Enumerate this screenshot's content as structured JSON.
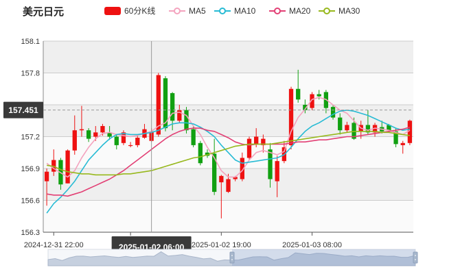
{
  "page_title": "美元日元",
  "legend": [
    {
      "label": "60分K线",
      "color": "#ee1111",
      "kind": "bar"
    },
    {
      "label": "MA5",
      "color": "#f4a3be",
      "kind": "line"
    },
    {
      "label": "MA10",
      "color": "#27bbd4",
      "kind": "line"
    },
    {
      "label": "MA20",
      "color": "#e23f74",
      "kind": "line"
    },
    {
      "label": "MA30",
      "color": "#97b81c",
      "kind": "line"
    }
  ],
  "crosshair": {
    "y_value": "157.451",
    "x_label": "2025-01-02 06:00"
  },
  "colors": {
    "up": "#ee1111",
    "down": "#11a011",
    "band": "#efefef",
    "grid": "#cccccc"
  },
  "chart_data": {
    "type": "candlestick",
    "ylim": [
      156.3,
      158.1
    ],
    "y_ticks": [
      "158.1",
      "157.8",
      "157.5",
      "157.2",
      "156.9",
      "156.6",
      "156.3"
    ],
    "x_tick_labels": [
      "2024-12-31 22:00",
      "2025-01-02 19:00",
      "2025-01-03 08:00"
    ],
    "candles": [
      [
        156.78,
        156.87,
        156.55,
        156.9
      ],
      [
        156.87,
        156.98,
        156.83,
        157.08
      ],
      [
        156.98,
        156.75,
        156.7,
        157.0
      ],
      [
        156.76,
        157.07,
        156.76,
        157.08
      ],
      [
        157.07,
        157.26,
        157.03,
        157.4
      ],
      [
        157.26,
        157.27,
        157.2,
        157.49
      ],
      [
        157.26,
        157.18,
        157.15,
        157.28
      ],
      [
        157.2,
        157.24,
        157.16,
        157.3
      ],
      [
        157.24,
        157.3,
        157.21,
        157.32
      ],
      [
        157.24,
        157.2,
        157.17,
        157.3
      ],
      [
        157.2,
        157.12,
        157.08,
        157.22
      ],
      [
        157.14,
        157.24,
        157.12,
        157.26
      ],
      [
        157.12,
        157.12,
        157.1,
        157.15
      ],
      [
        157.12,
        157.19,
        157.1,
        157.22
      ],
      [
        157.19,
        157.27,
        157.18,
        157.32
      ],
      [
        157.16,
        157.25,
        157.15,
        157.28
      ],
      [
        157.22,
        157.78,
        157.2,
        157.8
      ],
      [
        157.75,
        157.28,
        157.25,
        157.77
      ],
      [
        157.61,
        157.35,
        157.26,
        157.62
      ],
      [
        157.35,
        157.45,
        157.33,
        157.5
      ],
      [
        157.45,
        157.26,
        157.23,
        157.48
      ],
      [
        157.27,
        157.12,
        157.1,
        157.3
      ],
      [
        157.14,
        156.95,
        156.93,
        157.16
      ],
      [
        157.05,
        157.02,
        157.0,
        157.08
      ],
      [
        157.04,
        156.68,
        156.65,
        157.18
      ],
      [
        156.77,
        156.83,
        156.43,
        156.84
      ],
      [
        156.68,
        156.8,
        156.67,
        156.85
      ],
      [
        156.8,
        156.82,
        156.78,
        156.83
      ],
      [
        156.8,
        157.0,
        156.78,
        157.05
      ],
      [
        157.0,
        157.18,
        156.98,
        157.2
      ],
      [
        157.13,
        157.2,
        157.1,
        157.28
      ],
      [
        157.12,
        157.18,
        157.05,
        157.22
      ],
      [
        157.08,
        156.8,
        156.72,
        157.14
      ],
      [
        156.78,
        156.97,
        156.63,
        157.02
      ],
      [
        156.97,
        157.1,
        156.95,
        157.16
      ],
      [
        157.12,
        157.65,
        157.08,
        157.67
      ],
      [
        157.65,
        157.55,
        157.52,
        157.83
      ],
      [
        157.5,
        157.45,
        157.42,
        157.55
      ],
      [
        157.47,
        157.6,
        157.45,
        157.62
      ],
      [
        157.6,
        157.58,
        157.55,
        157.64
      ],
      [
        157.62,
        157.47,
        157.42,
        157.64
      ],
      [
        157.48,
        157.38,
        157.36,
        157.5
      ],
      [
        157.38,
        157.26,
        157.22,
        157.42
      ],
      [
        157.26,
        157.31,
        157.24,
        157.34
      ],
      [
        157.33,
        157.18,
        157.17,
        157.38
      ],
      [
        157.25,
        157.31,
        157.18,
        157.35
      ],
      [
        157.31,
        157.24,
        157.22,
        157.45
      ],
      [
        157.24,
        157.31,
        157.2,
        157.33
      ],
      [
        157.29,
        157.25,
        157.23,
        157.35
      ],
      [
        157.31,
        157.26,
        157.24,
        157.32
      ],
      [
        157.25,
        157.13,
        157.1,
        157.28
      ],
      [
        157.12,
        157.14,
        157.04,
        157.16
      ],
      [
        157.14,
        157.35,
        157.12,
        157.36
      ]
    ],
    "ma5": [
      156.95,
      156.9,
      156.86,
      156.82,
      156.88,
      157.0,
      157.1,
      157.18,
      157.23,
      157.24,
      157.22,
      157.21,
      157.2,
      157.21,
      157.23,
      157.25,
      157.3,
      157.33,
      157.42,
      157.43,
      157.4,
      157.3,
      157.22,
      157.1,
      157.0,
      156.88,
      156.82,
      156.82,
      156.88,
      156.98,
      157.05,
      157.07,
      157.05,
      157.03,
      157.06,
      157.25,
      157.38,
      157.46,
      157.55,
      157.57,
      157.55,
      157.5,
      157.45,
      157.42,
      157.35,
      157.28,
      157.26,
      157.28,
      157.27,
      157.26,
      157.24,
      157.22,
      157.26
    ],
    "ma10": [
      156.48,
      156.57,
      156.63,
      156.7,
      156.78,
      156.88,
      156.98,
      157.05,
      157.12,
      157.18,
      157.22,
      157.23,
      157.22,
      157.22,
      157.23,
      157.24,
      157.26,
      157.29,
      157.32,
      157.33,
      157.33,
      157.32,
      157.29,
      157.25,
      157.2,
      157.12,
      157.05,
      156.98,
      156.95,
      156.96,
      156.97,
      156.98,
      156.99,
      157.0,
      157.03,
      157.1,
      157.18,
      157.25,
      157.3,
      157.33,
      157.37,
      157.41,
      157.44,
      157.45,
      157.44,
      157.42,
      157.4,
      157.37,
      157.34,
      157.31,
      157.28,
      157.26,
      157.27
    ],
    "ma20": [
      156.66,
      156.65,
      156.65,
      156.64,
      156.66,
      156.68,
      156.71,
      156.74,
      156.77,
      156.8,
      156.84,
      156.88,
      156.93,
      156.98,
      157.03,
      157.08,
      157.13,
      157.18,
      157.22,
      157.25,
      157.27,
      157.28,
      157.28,
      157.26,
      157.25,
      157.22,
      157.19,
      157.15,
      157.13,
      157.12,
      157.13,
      157.13,
      157.13,
      157.13,
      157.13,
      157.14,
      157.15,
      157.15,
      157.16,
      157.17,
      157.17,
      157.18,
      157.19,
      157.2,
      157.2,
      157.21,
      157.22,
      157.23,
      157.24,
      157.25,
      157.26,
      157.27,
      157.29
    ],
    "ma30": [
      156.93,
      156.92,
      156.89,
      156.87,
      156.86,
      156.85,
      156.85,
      156.84,
      156.84,
      156.84,
      156.84,
      156.85,
      156.85,
      156.86,
      156.87,
      156.88,
      156.9,
      156.92,
      156.94,
      156.96,
      156.98,
      157.0,
      157.01,
      157.03,
      157.05,
      157.07,
      157.09,
      157.11,
      157.12,
      157.13,
      157.13,
      157.13,
      157.13,
      157.14,
      157.15,
      157.16,
      157.17,
      157.18,
      157.19,
      157.2,
      157.21,
      157.22,
      157.23,
      157.24,
      157.25,
      157.25,
      157.25,
      157.25,
      157.24,
      157.24,
      157.23,
      157.22,
      157.21
    ]
  }
}
